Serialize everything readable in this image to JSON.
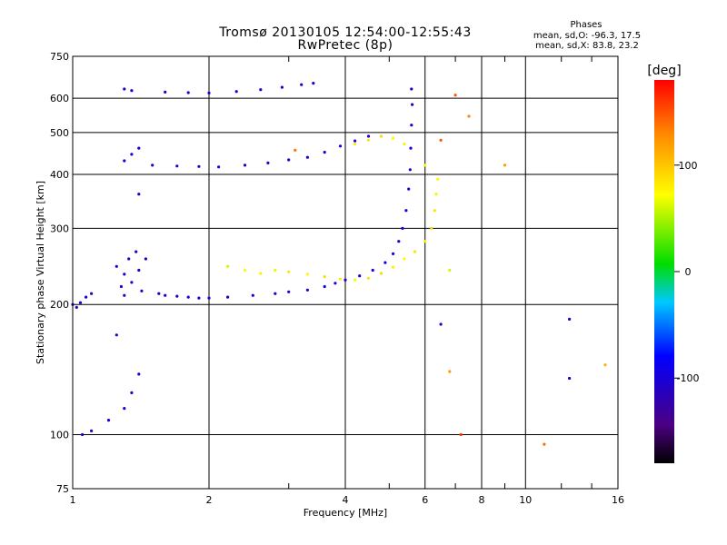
{
  "header": {
    "title_line1": "Tromsø 20130105 12:54:00-12:55:43",
    "title_line2": "RwPretec (8p)"
  },
  "phases_box": {
    "title": "Phases",
    "line_o": "mean, sd,O: -96.3, 17.5",
    "line_x": "mean, sd,X: 83.8, 23.2"
  },
  "colorbar": {
    "unit_label": "[deg]",
    "ticks": [
      {
        "label": "100",
        "value": 100
      },
      {
        "label": "0",
        "value": 0
      },
      {
        "label": "-100",
        "value": -100
      }
    ],
    "range": [
      -180,
      180
    ]
  },
  "chart_data": {
    "type": "scatter",
    "title": "Tromsø 20130105 12:54:00-12:55:43",
    "subtitle": "RwPretec (8p)",
    "xlabel": "Frequency [MHz]",
    "ylabel": "Stationary phase Virtual Height [km]",
    "xscale": "log",
    "yscale": "log",
    "xlim": [
      1,
      16
    ],
    "ylim": [
      75,
      750
    ],
    "xticks": [
      {
        "value": 1,
        "label": "1"
      },
      {
        "value": 2,
        "label": "2"
      },
      {
        "value": 4,
        "label": "4"
      },
      {
        "value": 6,
        "label": "6"
      },
      {
        "value": 8,
        "label": "8"
      },
      {
        "value": 10,
        "label": "10"
      },
      {
        "value": 16,
        "label": "16"
      }
    ],
    "xminor": [
      3,
      5,
      7,
      9,
      12,
      14
    ],
    "yticks": [
      {
        "value": 75,
        "label": "75"
      },
      {
        "value": 100,
        "label": "100"
      },
      {
        "value": 200,
        "label": "200"
      },
      {
        "value": 300,
        "label": "300"
      },
      {
        "value": 400,
        "label": "400"
      },
      {
        "value": 500,
        "label": "500"
      },
      {
        "value": 600,
        "label": "600"
      },
      {
        "value": 750,
        "label": "750"
      }
    ],
    "grid": true,
    "series": [
      {
        "points": [
          [
            1.0,
            200,
            -110
          ],
          [
            1.02,
            197,
            -105
          ],
          [
            1.04,
            202,
            -100
          ],
          [
            1.07,
            208,
            -95
          ],
          [
            1.1,
            212,
            -110
          ],
          [
            1.25,
            245,
            -105
          ],
          [
            1.3,
            235,
            -100
          ],
          [
            1.35,
            225,
            -115
          ],
          [
            1.4,
            240,
            -100
          ],
          [
            1.45,
            255,
            -105
          ],
          [
            1.28,
            220,
            -95
          ],
          [
            1.33,
            255,
            -110
          ],
          [
            1.42,
            215,
            -100
          ],
          [
            1.38,
            265,
            -105
          ],
          [
            1.3,
            210,
            -110
          ],
          [
            1.55,
            212,
            -105
          ],
          [
            1.6,
            210,
            -100
          ],
          [
            1.7,
            209,
            -110
          ],
          [
            1.8,
            208,
            -100
          ],
          [
            1.9,
            207,
            -105
          ],
          [
            2.0,
            207,
            -100
          ],
          [
            2.2,
            208,
            -105
          ],
          [
            2.5,
            210,
            -100
          ],
          [
            2.8,
            212,
            -110
          ],
          [
            3.0,
            214,
            -100
          ],
          [
            3.3,
            216,
            -105
          ],
          [
            3.6,
            220,
            -95
          ],
          [
            3.8,
            224,
            -100
          ],
          [
            4.0,
            228,
            -105
          ],
          [
            4.3,
            233,
            -100
          ],
          [
            4.6,
            240,
            -95
          ],
          [
            4.9,
            250,
            -100
          ],
          [
            5.1,
            262,
            -105
          ],
          [
            5.25,
            280,
            -100
          ],
          [
            5.35,
            300,
            -95
          ],
          [
            5.45,
            330,
            -100
          ],
          [
            5.52,
            370,
            -105
          ],
          [
            5.56,
            410,
            -100
          ],
          [
            5.58,
            460,
            -95
          ],
          [
            5.6,
            520,
            -100
          ],
          [
            5.62,
            580,
            -105
          ],
          [
            5.6,
            630,
            -100
          ],
          [
            1.5,
            420,
            -110
          ],
          [
            1.7,
            418,
            -100
          ],
          [
            1.9,
            417,
            -105
          ],
          [
            2.1,
            416,
            -95
          ],
          [
            2.4,
            420,
            -100
          ],
          [
            2.7,
            425,
            -110
          ],
          [
            3.0,
            432,
            -100
          ],
          [
            3.3,
            438,
            -105
          ],
          [
            3.6,
            450,
            -100
          ],
          [
            3.9,
            465,
            -95
          ],
          [
            4.2,
            478,
            -100
          ],
          [
            4.5,
            490,
            -105
          ],
          [
            1.3,
            430,
            -100
          ],
          [
            1.35,
            445,
            -105
          ],
          [
            1.4,
            460,
            -100
          ],
          [
            1.3,
            630,
            -105
          ],
          [
            1.35,
            625,
            -100
          ],
          [
            1.6,
            620,
            -100
          ],
          [
            1.8,
            618,
            -105
          ],
          [
            2.0,
            617,
            -100
          ],
          [
            2.3,
            622,
            -110
          ],
          [
            2.6,
            628,
            -105
          ],
          [
            2.9,
            636,
            -100
          ],
          [
            3.2,
            645,
            -105
          ],
          [
            3.4,
            650,
            -100
          ],
          [
            1.05,
            100,
            -100
          ],
          [
            1.1,
            102,
            -105
          ],
          [
            1.2,
            108,
            -95
          ],
          [
            1.3,
            115,
            -100
          ],
          [
            1.35,
            125,
            -110
          ],
          [
            1.4,
            138,
            -100
          ],
          [
            1.25,
            170,
            -105
          ],
          [
            1.4,
            360,
            -100
          ],
          [
            6.5,
            180,
            -100
          ],
          [
            12.5,
            185,
            -105
          ],
          [
            12.5,
            135,
            -100
          ]
        ]
      },
      {
        "points": [
          [
            2.2,
            245,
            60
          ],
          [
            2.4,
            240,
            70
          ],
          [
            2.6,
            236,
            80
          ],
          [
            2.8,
            240,
            65
          ],
          [
            3.0,
            238,
            85
          ],
          [
            3.3,
            235,
            75
          ],
          [
            3.6,
            232,
            90
          ],
          [
            3.9,
            229,
            80
          ],
          [
            4.2,
            228,
            70
          ],
          [
            4.5,
            230,
            85
          ],
          [
            4.8,
            236,
            90
          ],
          [
            5.1,
            244,
            80
          ],
          [
            5.4,
            255,
            75
          ],
          [
            5.7,
            265,
            85
          ],
          [
            6.0,
            280,
            80
          ],
          [
            6.2,
            300,
            90
          ],
          [
            6.3,
            330,
            85
          ],
          [
            6.35,
            360,
            80
          ],
          [
            6.4,
            390,
            75
          ],
          [
            6.0,
            420,
            70
          ],
          [
            4.2,
            470,
            80
          ],
          [
            4.5,
            480,
            85
          ],
          [
            4.8,
            490,
            90
          ],
          [
            5.1,
            485,
            75
          ],
          [
            5.4,
            470,
            80
          ],
          [
            3.1,
            455,
            140
          ],
          [
            6.8,
            240,
            60
          ],
          [
            7.0,
            610,
            150
          ],
          [
            7.2,
            100,
            160
          ],
          [
            6.8,
            140,
            120
          ],
          [
            7.5,
            545,
            130
          ],
          [
            9.0,
            420,
            120
          ],
          [
            11.0,
            95,
            140
          ],
          [
            6.5,
            480,
            150
          ],
          [
            15.0,
            145,
            110
          ]
        ]
      }
    ]
  }
}
